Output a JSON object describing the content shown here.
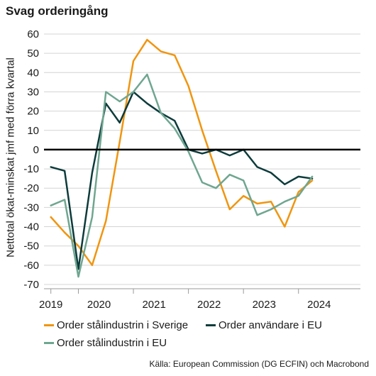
{
  "title": "Svag orderingång",
  "source": "Källa: European Commission (DG ECFIN) och Macrobond",
  "chart_data": {
    "type": "line",
    "ylabel": "Nettotal ökat-minskat jmf med förra kvartal",
    "xlabel": "",
    "ylim": [
      -70,
      60
    ],
    "yticks": [
      60,
      50,
      40,
      30,
      20,
      10,
      0,
      -10,
      -20,
      -30,
      -40,
      -50,
      -60,
      -70
    ],
    "xlim": [
      2018.875,
      2024.625
    ],
    "xtick_labels": [
      {
        "label": "2019",
        "pos": 2019.0
      },
      {
        "label": "2020",
        "pos": 2019.875
      },
      {
        "label": "2021",
        "pos": 2020.875
      },
      {
        "label": "2022",
        "pos": 2021.875
      },
      {
        "label": "2023",
        "pos": 2022.875
      },
      {
        "label": "2024",
        "pos": 2023.875
      }
    ],
    "year_boundaries": [
      2019.5,
      2020.5,
      2021.5,
      2022.5,
      2023.5
    ],
    "grid": true,
    "legend_position": "bottom",
    "series": [
      {
        "name": "Order stålindustrin i Sverige",
        "color": "#f0950f",
        "points": [
          [
            2019.0,
            -35
          ],
          [
            2019.25,
            -43
          ],
          [
            2019.5,
            -50
          ],
          [
            2019.75,
            -60
          ],
          [
            2020.0,
            -37
          ],
          [
            2020.25,
            4
          ],
          [
            2020.5,
            46
          ],
          [
            2020.75,
            57
          ],
          [
            2021.0,
            51
          ],
          [
            2021.25,
            49
          ],
          [
            2021.5,
            33
          ],
          [
            2021.75,
            10
          ],
          [
            2022.0,
            -11
          ],
          [
            2022.25,
            -31
          ],
          [
            2022.5,
            -24
          ],
          [
            2022.75,
            -28
          ],
          [
            2023.0,
            -27
          ],
          [
            2023.25,
            -40
          ],
          [
            2023.5,
            -22
          ],
          [
            2023.75,
            -16
          ]
        ]
      },
      {
        "name": "Order användare i EU",
        "color": "#0d3b3b",
        "points": [
          [
            2019.0,
            -9
          ],
          [
            2019.25,
            -11
          ],
          [
            2019.5,
            -62
          ],
          [
            2019.75,
            -12
          ],
          [
            2020.0,
            24
          ],
          [
            2020.25,
            14
          ],
          [
            2020.5,
            30
          ],
          [
            2020.75,
            24
          ],
          [
            2021.0,
            19
          ],
          [
            2021.25,
            15
          ],
          [
            2021.5,
            0
          ],
          [
            2021.75,
            -2
          ],
          [
            2022.0,
            0
          ],
          [
            2022.25,
            -3
          ],
          [
            2022.5,
            0
          ],
          [
            2022.75,
            -9
          ],
          [
            2023.0,
            -12
          ],
          [
            2023.25,
            -18
          ],
          [
            2023.5,
            -14
          ],
          [
            2023.75,
            -15
          ]
        ]
      },
      {
        "name": "Order stålindustrin i EU",
        "color": "#6fa691",
        "points": [
          [
            2019.0,
            -29
          ],
          [
            2019.25,
            -26
          ],
          [
            2019.5,
            -66
          ],
          [
            2019.75,
            -35
          ],
          [
            2020.0,
            30
          ],
          [
            2020.25,
            25
          ],
          [
            2020.5,
            30
          ],
          [
            2020.75,
            39
          ],
          [
            2021.0,
            19
          ],
          [
            2021.25,
            11
          ],
          [
            2021.5,
            -1
          ],
          [
            2021.75,
            -17
          ],
          [
            2022.0,
            -20
          ],
          [
            2022.25,
            -13
          ],
          [
            2022.5,
            -16
          ],
          [
            2022.75,
            -34
          ],
          [
            2023.0,
            -31
          ],
          [
            2023.25,
            -27
          ],
          [
            2023.5,
            -24
          ],
          [
            2023.75,
            -14
          ]
        ]
      }
    ]
  }
}
